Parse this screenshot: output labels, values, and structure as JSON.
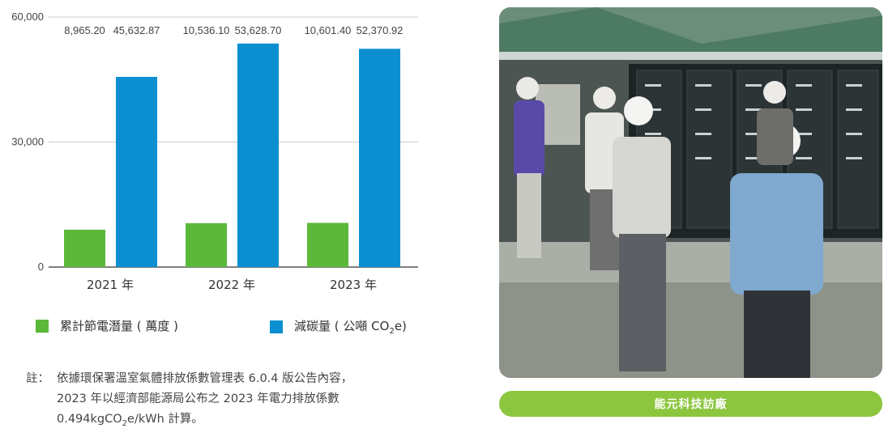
{
  "chart_data": {
    "type": "bar",
    "categories": [
      "2021 年",
      "2022 年",
      "2023 年"
    ],
    "series": [
      {
        "name": "累計節電潛量 ( 萬度 )",
        "values": [
          8965.2,
          10536.1,
          10601.4
        ],
        "labels": [
          "8,965.20",
          "10,536.10",
          "10,601.40"
        ],
        "color": "#5cb83a"
      },
      {
        "name": "減碳量 ( 公噸 CO2e)",
        "values": [
          45632.87,
          53628.7,
          52370.92
        ],
        "labels": [
          "45,632.87",
          "53,628.70",
          "52,370.92"
        ],
        "color": "#0b8fd1"
      }
    ],
    "ylim": [
      0,
      60000
    ],
    "yticks": [
      0,
      30000,
      60000
    ],
    "ytick_labels": [
      "0",
      "30,000",
      "60,000"
    ],
    "grid": true,
    "legend_position": "bottom"
  },
  "legend": {
    "green_label": "累計節電潛量 ( 萬度 )",
    "blue_label_pre": "減碳量 ( 公噸 CO",
    "blue_label_sub": "2",
    "blue_label_post": "e)"
  },
  "note": {
    "prefix": "註：",
    "line1": "依據環保署溫室氣體排放係數管理表 6.0.4 版公告內容，",
    "line2": "2023 年以經濟部能源局公布之 2023 年電力排放係數",
    "line3_pre": "0.494kgCO",
    "line3_sub": "2",
    "line3_post": "e/kWh 計算。"
  },
  "caption": "能元科技訪廠"
}
